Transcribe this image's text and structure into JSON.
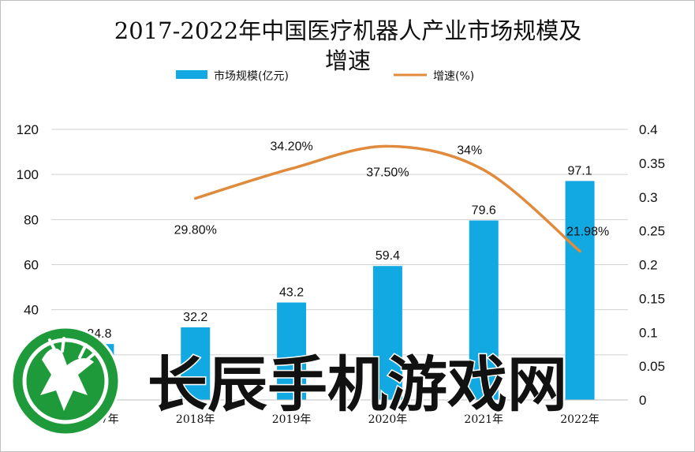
{
  "chart_data": {
    "type": "bar",
    "title_line1": "2017-2022年中国医疗机器人产业市场规模及",
    "title_line2": "增速",
    "categories": [
      "2017年",
      "2018年",
      "2019年",
      "2020年",
      "2021年",
      "2022年"
    ],
    "series": [
      {
        "name": "市场规模(亿元)",
        "type": "bar",
        "axis": "left",
        "color": "#12a9e3",
        "values": [
          24.8,
          32.2,
          43.2,
          59.4,
          79.6,
          97.1
        ],
        "labels": [
          "24.8",
          "32.2",
          "43.2",
          "59.4",
          "79.6",
          "97.1"
        ]
      },
      {
        "name": "增速(%)",
        "type": "line",
        "axis": "right",
        "color": "#e08a3c",
        "values": [
          null,
          0.298,
          0.342,
          0.375,
          0.34,
          0.2198
        ],
        "labels": [
          "",
          "29.80%",
          "34.20%",
          "37.50%",
          "34%",
          "21.98%"
        ]
      }
    ],
    "y_left": {
      "lim": [
        0,
        120
      ],
      "ticks": [
        "0",
        "20",
        "40",
        "60",
        "80",
        "100",
        "120"
      ]
    },
    "y_right": {
      "lim": [
        0,
        0.4
      ],
      "ticks": [
        "0",
        "0.05",
        "0.1",
        "0.15",
        "0.2",
        "0.25",
        "0.3",
        "0.35",
        "0.4"
      ]
    },
    "grid": true,
    "legend_position": "top"
  },
  "watermark": {
    "text": "长辰手机游戏网",
    "logo_icon": "deer-head-logo",
    "color": "#1f9a3a"
  }
}
